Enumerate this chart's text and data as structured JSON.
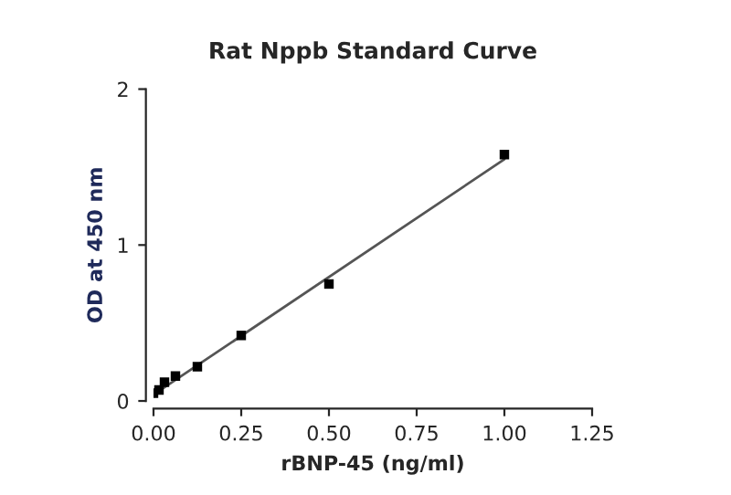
{
  "chart_data": {
    "type": "scatter",
    "title": "Rat Nppb Standard Curve",
    "xlabel": "rBNP-45 (ng/ml)",
    "ylabel": "OD at 450 nm",
    "series": [
      {
        "color": "#000000",
        "marker": "square",
        "x": [
          0,
          0.0156,
          0.03125,
          0.0625,
          0.125,
          0.25,
          0.5,
          1.0
        ],
        "values": [
          0.05,
          0.07,
          0.12,
          0.16,
          0.22,
          0.42,
          0.75,
          1.58
        ]
      },
      {
        "type": "line",
        "color": "#555555",
        "x": [
          0,
          1.0
        ],
        "values": [
          0.04,
          1.55
        ]
      }
    ],
    "xlim": [
      0,
      1.25
    ],
    "xticks": [
      {
        "value": 0,
        "label": "0.00"
      },
      0.25,
      {
        "value": 0.5,
        "label": "0.50"
      },
      0.75,
      {
        "value": 1,
        "label": "1.00"
      },
      1.25
    ],
    "ylim": [
      0,
      2
    ],
    "yticks": [
      0,
      1,
      2
    ],
    "grid": false,
    "legend": false
  }
}
